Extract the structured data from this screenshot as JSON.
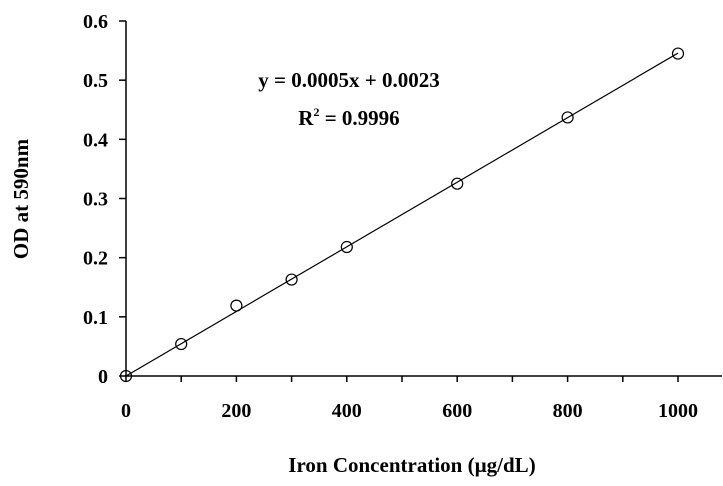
{
  "chart_data": {
    "type": "scatter",
    "xlabel": "Iron Concentration (µg/dL)",
    "ylabel": "OD at 590nm",
    "xlim": [
      0,
      1050
    ],
    "ylim": [
      0,
      0.6
    ],
    "x_ticks": [
      0,
      200,
      400,
      600,
      800,
      1000
    ],
    "x_tick_labels": [
      "0",
      "200",
      "400",
      "600",
      "800",
      "1000"
    ],
    "y_ticks": [
      0,
      0.1,
      0.2,
      0.3,
      0.4,
      0.5,
      0.6
    ],
    "y_tick_labels": [
      "0",
      "0.1",
      "0.2",
      "0.3",
      "0.4",
      "0.5",
      "0.6"
    ],
    "grid": false,
    "series": [
      {
        "x": [
          0,
          100,
          200,
          300,
          400,
          600,
          800,
          1000
        ],
        "y": [
          0.0,
          0.054,
          0.119,
          0.163,
          0.218,
          0.325,
          0.437,
          0.545
        ],
        "marker": "open-circle",
        "color": "#000000"
      }
    ],
    "trendline": {
      "slope": 0.0005435,
      "intercept": 0.0023,
      "x_range": [
        0,
        1000
      ],
      "color": "#000000"
    },
    "annotation": {
      "equation": "y = 0.0005x + 0.0023",
      "r2_prefix": "R",
      "r2_exponent": "2",
      "r2_value": " = 0.9996"
    }
  }
}
